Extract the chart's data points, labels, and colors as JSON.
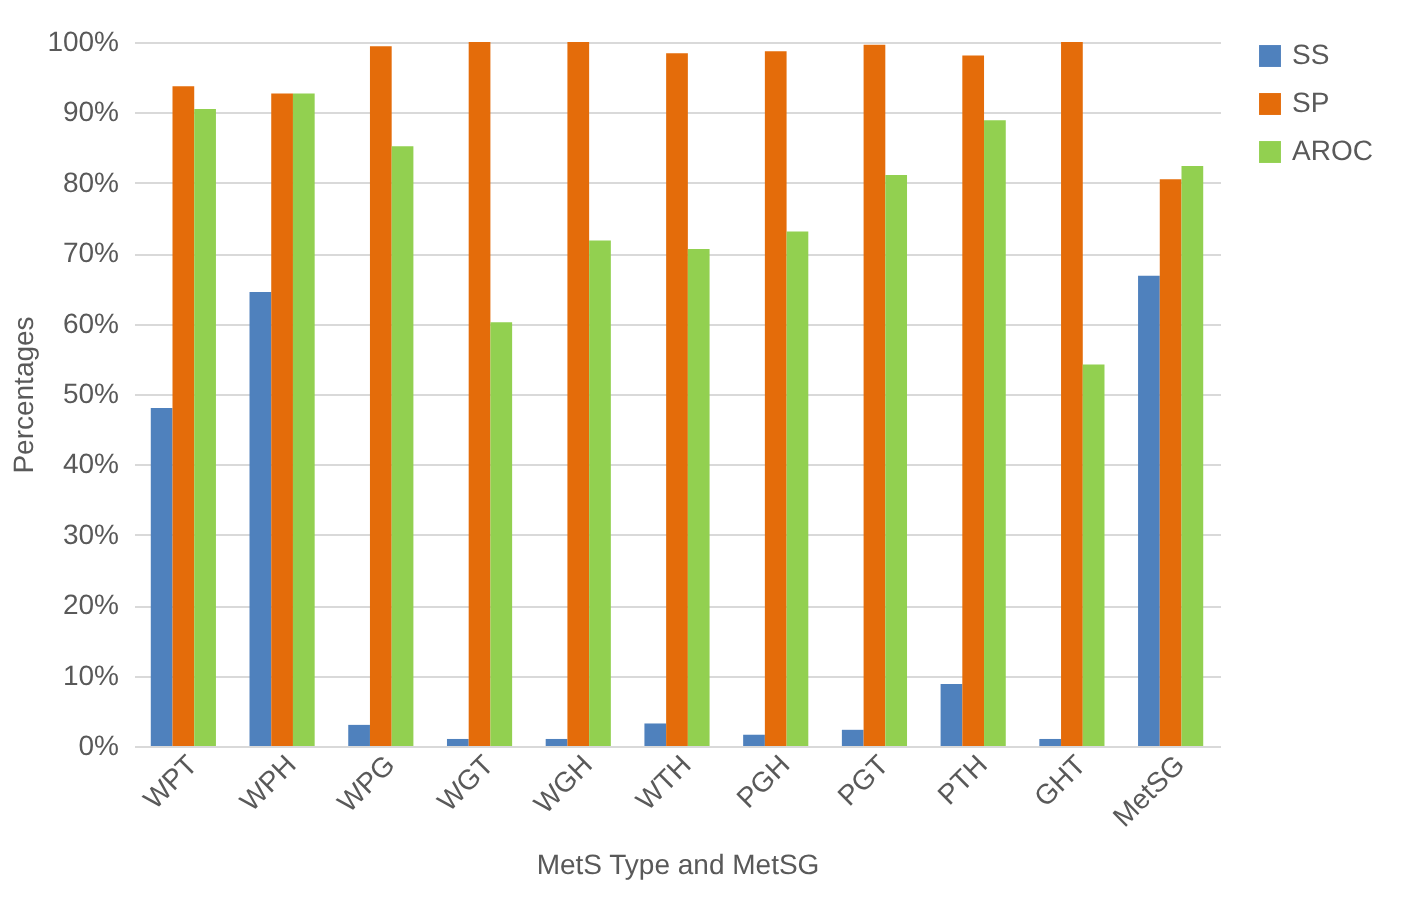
{
  "chart_data": {
    "type": "bar",
    "xlabel": "MetS Type and MetSG",
    "ylabel": "Percentages",
    "categories": [
      "WPT",
      "WPH",
      "WPG",
      "WGT",
      "WGH",
      "WTH",
      "PGH",
      "PGT",
      "PTH",
      "GHT",
      "MetSG"
    ],
    "series": [
      {
        "name": "SS",
        "color": "#4f81bd",
        "values": [
          48,
          64.5,
          3,
          1,
          1,
          3.2,
          1.6,
          2.3,
          8.8,
          1,
          66.8
        ]
      },
      {
        "name": "SP",
        "color": "#e46c0a",
        "values": [
          93.7,
          92.7,
          99.4,
          100,
          100,
          98.4,
          98.7,
          99.6,
          98.1,
          100,
          80.5
        ]
      },
      {
        "name": "AROC",
        "color": "#92d050",
        "values": [
          90.5,
          92.7,
          85.2,
          60.2,
          71.8,
          70.6,
          73.1,
          81.1,
          88.9,
          54.2,
          82.4
        ]
      }
    ],
    "ylim": [
      0,
      100
    ],
    "yticks": [
      {
        "value": 0,
        "label": "0%"
      },
      {
        "value": 10,
        "label": "10%"
      },
      {
        "value": 20,
        "label": "20%"
      },
      {
        "value": 30,
        "label": "30%"
      },
      {
        "value": 40,
        "label": "40%"
      },
      {
        "value": 50,
        "label": "50%"
      },
      {
        "value": 60,
        "label": "60%"
      },
      {
        "value": 70,
        "label": "70%"
      },
      {
        "value": 80,
        "label": "80%"
      },
      {
        "value": 90,
        "label": "90%"
      },
      {
        "value": 100,
        "label": "100%"
      }
    ],
    "grid": "y",
    "legend": "right"
  }
}
